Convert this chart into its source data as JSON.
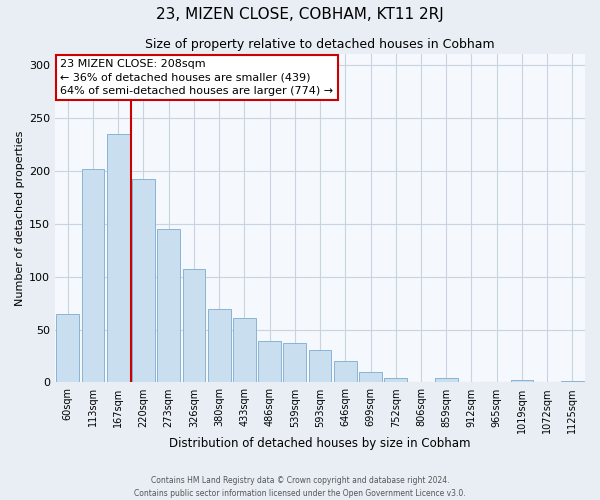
{
  "title": "23, MIZEN CLOSE, COBHAM, KT11 2RJ",
  "subtitle": "Size of property relative to detached houses in Cobham",
  "xlabel": "Distribution of detached houses by size in Cobham",
  "ylabel": "Number of detached properties",
  "bin_labels": [
    "60sqm",
    "113sqm",
    "167sqm",
    "220sqm",
    "273sqm",
    "326sqm",
    "380sqm",
    "433sqm",
    "486sqm",
    "539sqm",
    "593sqm",
    "646sqm",
    "699sqm",
    "752sqm",
    "806sqm",
    "859sqm",
    "912sqm",
    "965sqm",
    "1019sqm",
    "1072sqm",
    "1125sqm"
  ],
  "bar_heights": [
    65,
    202,
    235,
    192,
    145,
    107,
    69,
    61,
    39,
    37,
    31,
    20,
    10,
    4,
    0,
    4,
    0,
    0,
    2,
    0,
    1
  ],
  "bar_color": "#c9dff0",
  "bar_edge_color": "#8ab4d4",
  "vline_pos": 2.5,
  "vline_color": "#cc0000",
  "annotation_title": "23 MIZEN CLOSE: 208sqm",
  "annotation_line1": "← 36% of detached houses are smaller (439)",
  "annotation_line2": "64% of semi-detached houses are larger (774) →",
  "annotation_box_facecolor": "white",
  "annotation_box_edgecolor": "#cc0000",
  "ylim": [
    0,
    310
  ],
  "yticks": [
    0,
    50,
    100,
    150,
    200,
    250,
    300
  ],
  "footer1": "Contains HM Land Registry data © Crown copyright and database right 2024.",
  "footer2": "Contains public sector information licensed under the Open Government Licence v3.0.",
  "fig_facecolor": "#e8eef4",
  "ax_facecolor": "#f5f8fc",
  "grid_color": "#c8d4e0",
  "title_fontsize": 11,
  "subtitle_fontsize": 9,
  "xlabel_fontsize": 8.5,
  "ylabel_fontsize": 8,
  "tick_fontsize": 7,
  "annotation_fontsize": 8
}
